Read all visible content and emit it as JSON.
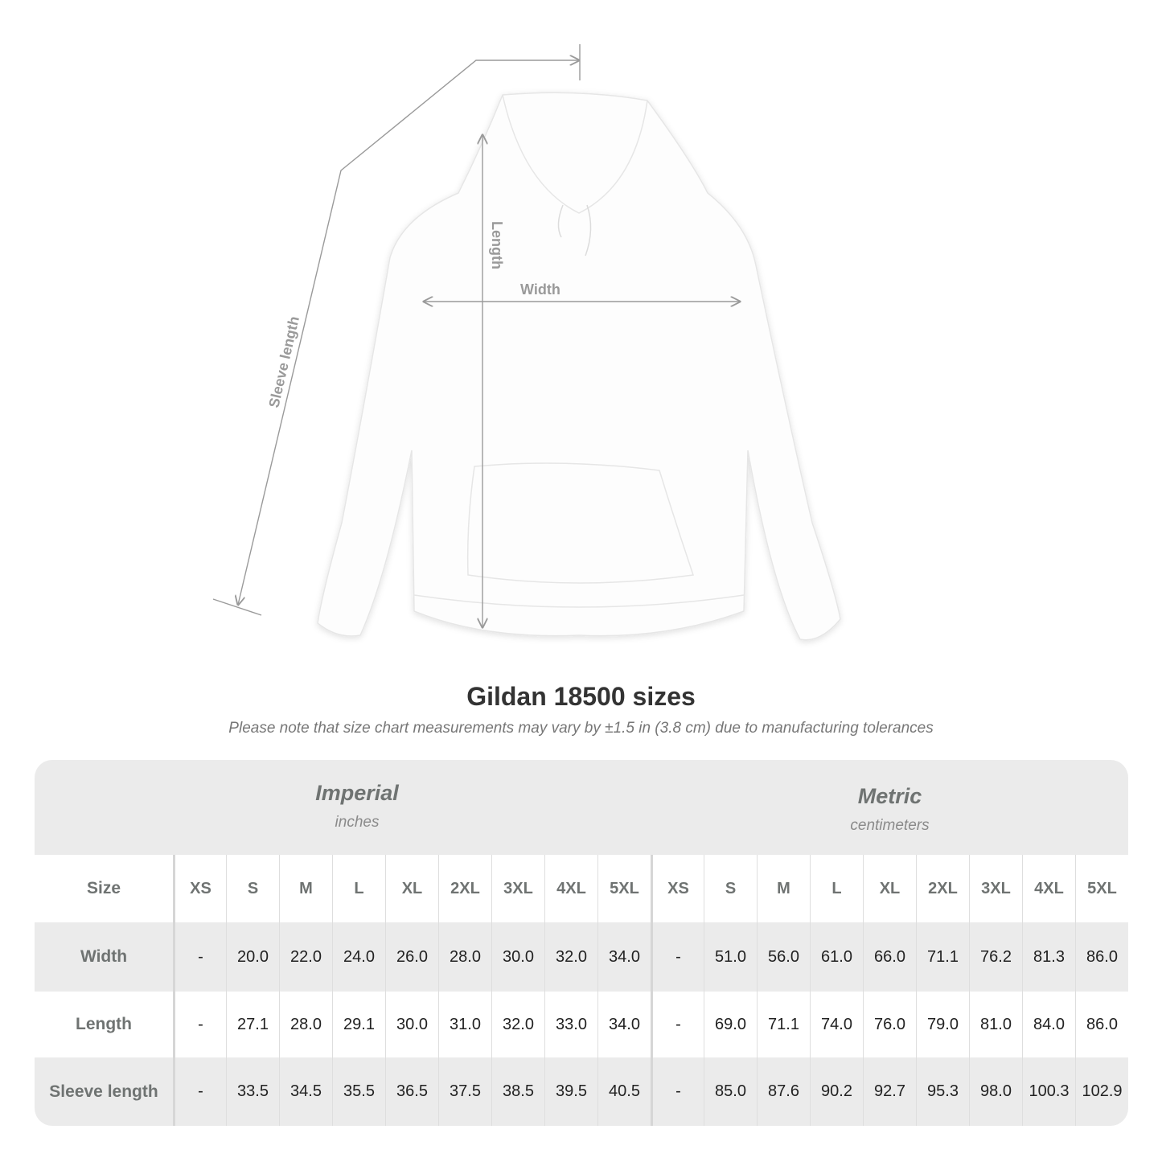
{
  "diagram": {
    "labels": {
      "length": "Length",
      "width": "Width",
      "sleeve_length": "Sleeve length"
    },
    "colors": {
      "measure_line": "#9a9a9a",
      "garment": "#ffffff"
    }
  },
  "title": "Gildan 18500 sizes",
  "note": "Please note that size chart measurements may vary by ±1.5 in (3.8 cm) due to manufacturing tolerances",
  "table": {
    "imperial": {
      "name": "Imperial",
      "unit": "inches"
    },
    "metric": {
      "name": "Metric",
      "unit": "centimeters"
    },
    "size_label": "Size",
    "imperial_sizes": [
      "XS",
      "S",
      "M",
      "L",
      "XL",
      "2XL",
      "3XL",
      "4XL",
      "5XL"
    ],
    "metric_sizes": [
      "XS",
      "S",
      "M",
      "L",
      "XL",
      "2XL",
      "3XL",
      "4XL",
      "5XL"
    ],
    "rows": [
      {
        "label": "Width",
        "imperial": [
          "-",
          "20.0",
          "22.0",
          "24.0",
          "26.0",
          "28.0",
          "30.0",
          "32.0",
          "34.0"
        ],
        "metric": [
          "-",
          "51.0",
          "56.0",
          "61.0",
          "66.0",
          "71.1",
          "76.2",
          "81.3",
          "86.0"
        ]
      },
      {
        "label": "Length",
        "imperial": [
          "-",
          "27.1",
          "28.0",
          "29.1",
          "30.0",
          "31.0",
          "32.0",
          "33.0",
          "34.0"
        ],
        "metric": [
          "-",
          "69.0",
          "71.1",
          "74.0",
          "76.0",
          "79.0",
          "81.0",
          "84.0",
          "86.0"
        ]
      },
      {
        "label": "Sleeve length",
        "imperial": [
          "-",
          "33.5",
          "34.5",
          "35.5",
          "36.5",
          "37.5",
          "38.5",
          "39.5",
          "40.5"
        ],
        "metric": [
          "-",
          "85.0",
          "87.6",
          "90.2",
          "92.7",
          "95.3",
          "98.0",
          "100.3",
          "102.9"
        ]
      }
    ]
  }
}
